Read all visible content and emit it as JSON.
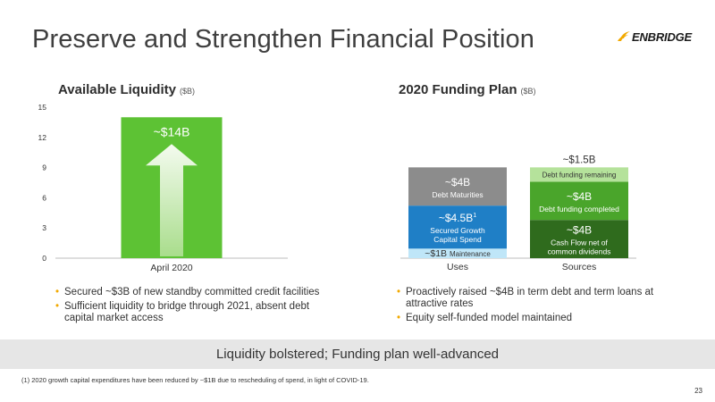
{
  "header": {
    "title": "Preserve and Strengthen Financial Position",
    "logo_text": "ENBRIDGE"
  },
  "colors": {
    "green_bright": "#5dc234",
    "green_mid": "#4aa52b",
    "green_dark": "#2f6b1d",
    "green_light": "#b5e29b",
    "gray": "#8c8c8c",
    "blue": "#1f7fc6",
    "blue_light": "#bfe6f8",
    "accent_orange": "#f2a900"
  },
  "left_panel": {
    "title": "Available Liquidity",
    "unit": "($B)",
    "bullets": [
      "Secured ~$3B of new standby committed credit facilities",
      "Sufficient liquidity to bridge through 2021, absent debt capital market access"
    ]
  },
  "right_panel": {
    "title": "2020 Funding Plan",
    "unit": "($B)",
    "bullets": [
      "Proactively raised ~$4B in term debt and term loans at attractive rates",
      "Equity self-funded model maintained"
    ]
  },
  "chart_data": [
    {
      "type": "bar",
      "title": "Available Liquidity",
      "categories": [
        "April 2020"
      ],
      "values": [
        14
      ],
      "data_labels": [
        "~$14B"
      ],
      "ylim": [
        0,
        15
      ],
      "yticks": [
        0,
        3,
        6,
        9,
        12,
        15
      ],
      "grid": false,
      "annotation": "upward arrow"
    },
    {
      "type": "bar",
      "stacked": true,
      "title": "2020 Funding Plan",
      "categories": [
        "Uses",
        "Sources"
      ],
      "stacks": [
        {
          "category": "Uses",
          "segments": [
            {
              "value": 1,
              "label": "~$1B",
              "sub": "Maintenance",
              "color": "#bfe6f8",
              "text_color": "#333333",
              "inline": true
            },
            {
              "value": 4.5,
              "label": "~$4.5B",
              "sup": "1",
              "sub": "Secured Growth|Capital Spend",
              "color": "#1f7fc6",
              "text_color": "#ffffff"
            },
            {
              "value": 4,
              "label": "~$4B",
              "sub": "Debt Maturities",
              "color": "#8c8c8c",
              "text_color": "#ffffff"
            }
          ]
        },
        {
          "category": "Sources",
          "segments": [
            {
              "value": 4,
              "label": "~$4B",
              "sub": "Cash Flow net of|common dividends",
              "color": "#2f6b1d",
              "text_color": "#ffffff"
            },
            {
              "value": 4,
              "label": "~$4B",
              "sub": "Debt funding completed",
              "color": "#4aa52b",
              "text_color": "#ffffff"
            },
            {
              "value": 1.5,
              "label": "~$1.5B",
              "sub": "Debt funding remaining",
              "color": "#b5e29b",
              "text_color": "#333333",
              "label_above": true
            }
          ]
        }
      ]
    }
  ],
  "banner": "Liquidity bolstered; Funding plan well-advanced",
  "footnote": "(1) 2020 growth capital expenditures have been reduced by ~$1B due to rescheduling of spend, in light of COVID-19.",
  "page_number": "23"
}
